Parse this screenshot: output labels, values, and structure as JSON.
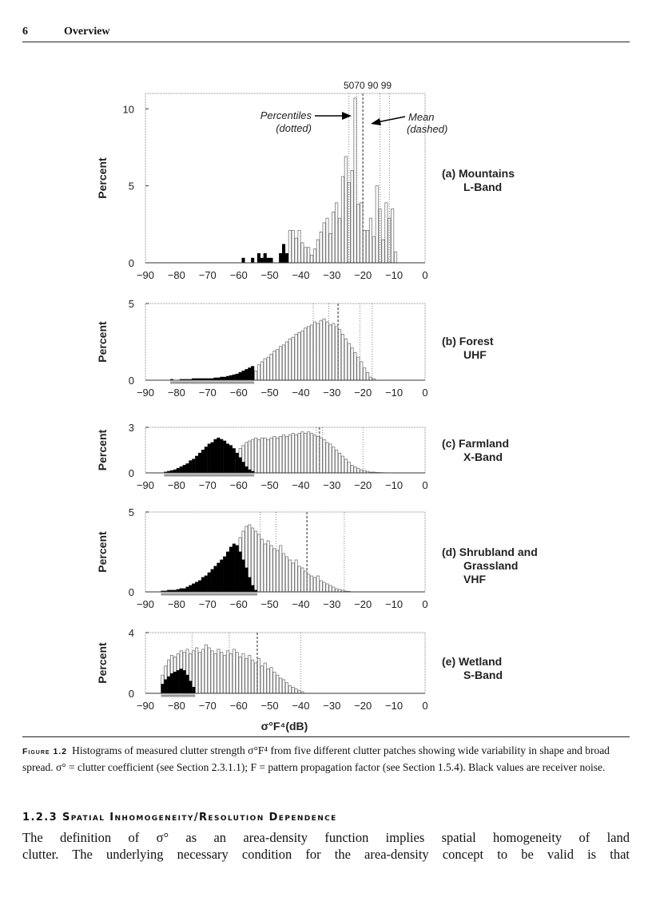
{
  "header": {
    "page_number": "6",
    "title": "Overview"
  },
  "figure": {
    "percentile_labels": "5070 90 99",
    "annotation_percentiles": [
      "Percentiles",
      "(dotted)"
    ],
    "annotation_mean": [
      "Mean",
      "(dashed)"
    ],
    "x_axis_label": "σ°F⁴(dB)"
  },
  "chart_data": [
    {
      "type": "bar",
      "title": "(a) Mountains",
      "subtitle": "L-Band",
      "ylabel": "Percent",
      "xlim": [
        -90,
        0
      ],
      "ylim": [
        0,
        11
      ],
      "yticks": [
        0,
        5,
        10
      ],
      "xticks": [
        -90,
        -80,
        -70,
        -60,
        -50,
        -40,
        -30,
        -20,
        -10,
        0
      ],
      "bin_width_db": 1,
      "series": [
        {
          "name": "clutter",
          "x_start": -45,
          "values": [
            0.6,
            2.1,
            2.1,
            1.6,
            2.1,
            1.3,
            1.0,
            1.0,
            0.5,
            0.9,
            1.5,
            2.0,
            2.6,
            2.9,
            1.9,
            3.3,
            3.9,
            2.9,
            5.6,
            6.9,
            5.2,
            6.0,
            10.7,
            3.8,
            3.9,
            2.1,
            2.1,
            2.9,
            1.7,
            5.0,
            3.5,
            1.5,
            3.9,
            2.9,
            3.5,
            0.7
          ]
        },
        {
          "name": "receiver noise",
          "x_start": -59,
          "values": [
            0.3,
            0,
            0,
            0.3,
            0,
            0.6,
            0.3,
            0.6,
            0.3,
            0.3,
            0,
            0,
            0.6,
            1.2,
            0.6
          ]
        }
      ],
      "percentiles": [
        -24.5,
        -22,
        -14.5,
        -11.5
      ],
      "mean": -20
    },
    {
      "type": "bar",
      "title": "(b) Forest",
      "subtitle": "UHF",
      "ylabel": "Percent",
      "xlim": [
        -90,
        0
      ],
      "ylim": [
        0,
        5
      ],
      "yticks": [
        0,
        5
      ],
      "xticks": [
        -90,
        -80,
        -70,
        -60,
        -50,
        -40,
        -30,
        -20,
        -10,
        0
      ],
      "bin_width_db": 1,
      "series": [
        {
          "name": "clutter",
          "x_start": -55,
          "values": [
            0.6,
            1.0,
            1.2,
            1.4,
            1.5,
            1.7,
            1.9,
            2.0,
            2.2,
            2.3,
            2.5,
            2.7,
            2.8,
            3.0,
            3.1,
            3.2,
            3.4,
            3.5,
            3.6,
            3.8,
            3.7,
            3.9,
            4.0,
            3.8,
            3.6,
            3.7,
            3.5,
            3.3,
            3.0,
            2.7,
            2.4,
            2.1,
            1.8,
            1.5,
            1.2,
            0.8,
            0.5,
            0.2,
            0.1
          ]
        },
        {
          "name": "receiver noise",
          "x_start": -82,
          "values": [
            0.05,
            0,
            0,
            0.05,
            0.05,
            0.05,
            0.05,
            0.1,
            0.1,
            0.1,
            0.1,
            0.1,
            0.1,
            0.1,
            0.15,
            0.15,
            0.2,
            0.2,
            0.25,
            0.3,
            0.35,
            0.4,
            0.5,
            0.6,
            0.7,
            0.8,
            0.9
          ]
        }
      ],
      "percentiles": [
        -36,
        -31,
        -21,
        -17
      ],
      "mean": -28
    },
    {
      "type": "bar",
      "title": "(c) Farmland",
      "subtitle": "X-Band",
      "ylabel": "Percent",
      "xlim": [
        -90,
        0
      ],
      "ylim": [
        0,
        3
      ],
      "yticks": [
        0,
        3
      ],
      "xticks": [
        -90,
        -80,
        -70,
        -60,
        -50,
        -40,
        -30,
        -20,
        -10,
        0
      ],
      "bin_width_db": 1,
      "series": [
        {
          "name": "clutter",
          "x_start": -60,
          "values": [
            1.6,
            1.8,
            2.0,
            2.1,
            2.2,
            2.3,
            2.2,
            2.3,
            2.3,
            2.2,
            2.3,
            2.4,
            2.3,
            2.4,
            2.5,
            2.4,
            2.5,
            2.6,
            2.5,
            2.6,
            2.7,
            2.6,
            2.7,
            2.6,
            2.5,
            2.4,
            2.3,
            2.2,
            2.0,
            1.9,
            1.7,
            1.5,
            1.3,
            1.1,
            0.9,
            0.7,
            0.5,
            0.4,
            0.3,
            0.2,
            0.15,
            0.1,
            0.05,
            0.05,
            0.03,
            0.02,
            0.01
          ]
        },
        {
          "name": "receiver noise",
          "x_start": -84,
          "values": [
            0.05,
            0.1,
            0.15,
            0.2,
            0.3,
            0.4,
            0.5,
            0.6,
            0.8,
            0.9,
            1.1,
            1.3,
            1.5,
            1.7,
            1.9,
            2.0,
            2.2,
            2.3,
            2.2,
            2.1,
            1.9,
            1.8,
            1.6,
            1.3,
            1.0,
            0.7,
            0.4,
            0.2,
            0.1
          ]
        }
      ],
      "percentiles": [
        -35,
        -33,
        -20
      ],
      "mean": -34
    },
    {
      "type": "bar",
      "title": "(d) Shrubland and",
      "subtitle": "Grassland",
      "subtitle2": "VHF",
      "ylabel": "Percent",
      "xlim": [
        -90,
        0
      ],
      "ylim": [
        0,
        5
      ],
      "yticks": [
        0,
        5
      ],
      "xticks": [
        -90,
        -80,
        -70,
        -60,
        -50,
        -40,
        -30,
        -20,
        -10,
        0
      ],
      "bin_width_db": 1,
      "series": [
        {
          "name": "clutter",
          "x_start": -75,
          "values": [
            0.5,
            0.6,
            0.7,
            0.9,
            1.0,
            1.1,
            1.3,
            1.4,
            1.6,
            1.7,
            1.8,
            2.0,
            2.1,
            2.3,
            2.9,
            3.4,
            3.8,
            4.1,
            4.2,
            4.0,
            3.8,
            3.6,
            3.3,
            3.0,
            3.2,
            2.9,
            2.7,
            2.6,
            2.9,
            2.4,
            2.2,
            2.0,
            1.8,
            2.0,
            1.6,
            1.5,
            1.3,
            1.1,
            1.0,
            0.9,
            1.0,
            0.7,
            0.6,
            0.5,
            0.4,
            0.3,
            0.2,
            0.15,
            0.1,
            0.05,
            0.03
          ]
        },
        {
          "name": "receiver noise",
          "x_start": -85,
          "values": [
            0.05,
            0.05,
            0.1,
            0.1,
            0.1,
            0.15,
            0.2,
            0.2,
            0.3,
            0.4,
            0.5,
            0.6,
            0.7,
            0.9,
            1.0,
            1.2,
            1.4,
            1.6,
            1.8,
            2.0,
            2.2,
            2.5,
            2.8,
            3.0,
            2.9,
            2.5,
            2.0,
            1.5,
            0.9,
            0.4,
            0.1
          ]
        }
      ],
      "percentiles": [
        -53,
        -48,
        -26
      ],
      "mean": -38
    },
    {
      "type": "bar",
      "title": "(e) Wetland",
      "subtitle": "S-Band",
      "ylabel": "Percent",
      "xlabel": "σ°F⁴(dB)",
      "xlim": [
        -90,
        0
      ],
      "ylim": [
        0,
        4
      ],
      "yticks": [
        0,
        4
      ],
      "xticks": [
        -90,
        -80,
        -70,
        -60,
        -50,
        -40,
        -30,
        -20,
        -10,
        0
      ],
      "bin_width_db": 1,
      "series": [
        {
          "name": "clutter",
          "x_start": -85,
          "values": [
            1.2,
            1.8,
            2.2,
            2.5,
            2.4,
            2.6,
            2.8,
            2.7,
            2.9,
            2.6,
            2.8,
            3.0,
            2.7,
            2.9,
            3.2,
            3.0,
            2.8,
            2.6,
            2.9,
            2.7,
            2.5,
            2.8,
            2.6,
            2.9,
            2.7,
            2.4,
            2.6,
            2.3,
            2.5,
            2.2,
            2.0,
            2.3,
            1.8,
            2.0,
            1.6,
            1.7,
            1.4,
            1.2,
            1.0,
            0.9,
            0.7,
            0.5,
            0.4,
            0.3,
            0.2,
            0.1
          ]
        },
        {
          "name": "receiver noise",
          "x_start": -85,
          "values": [
            0.6,
            0.9,
            1.1,
            1.3,
            1.4,
            1.5,
            1.6,
            1.5,
            1.2,
            0.8,
            0.4
          ]
        }
      ],
      "percentiles": [
        -75,
        -63,
        -40
      ],
      "mean": -54
    }
  ],
  "caption": {
    "label": "Figure 1.2",
    "text": "Histograms of measured clutter strength σ°F⁴ from five different clutter patches showing wide variability in shape and broad spread. σ° = clutter coefficient (see Section 2.3.1.1); F = pattern propagation factor (see Section 1.5.4). Black values are receiver noise."
  },
  "section": {
    "heading": "1.2.3 Spatial Inhomogeneity/Resolution Dependence",
    "lines": [
      "The definition of σ° as an area-density function implies spatial homogeneity of land",
      "clutter. The underlying necessary condition for the area-density concept to be valid is that"
    ]
  }
}
